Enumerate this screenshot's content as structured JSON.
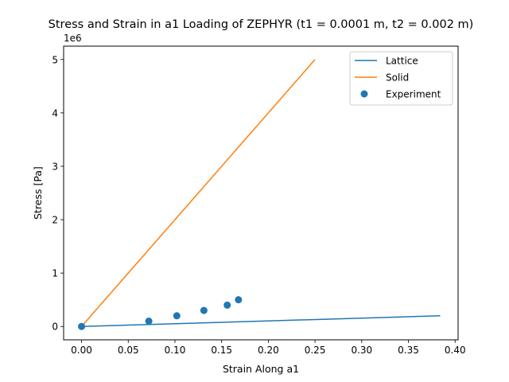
{
  "chart_data": {
    "type": "line",
    "title": "Stress and Strain in a1 Loading of ZEPHYR (t1 = 0.0001 m, t2 = 0.002 m)",
    "xlabel": "Strain Along a1",
    "ylabel": "Stress [Pa]",
    "y_offset_label": "1e6",
    "xlim": [
      -0.0192,
      0.4032
    ],
    "ylim": [
      -250000,
      5250000
    ],
    "x_ticks": [
      0.0,
      0.05,
      0.1,
      0.15,
      0.2,
      0.25,
      0.3,
      0.35,
      0.4
    ],
    "x_tick_labels": [
      "0.00",
      "0.05",
      "0.10",
      "0.15",
      "0.20",
      "0.25",
      "0.30",
      "0.35",
      "0.40"
    ],
    "y_ticks": [
      0,
      1000000,
      2000000,
      3000000,
      4000000,
      5000000
    ],
    "y_tick_labels": [
      "0",
      "1",
      "2",
      "3",
      "4",
      "5"
    ],
    "grid": false,
    "legend_position": "top-right",
    "series": [
      {
        "name": "Lattice",
        "kind": "line",
        "color": "#1f77b4",
        "x": [
          0.0,
          0.384
        ],
        "y": [
          0,
          200000
        ]
      },
      {
        "name": "Solid",
        "kind": "line",
        "color": "#ff7f0e",
        "x": [
          0.0,
          0.25
        ],
        "y": [
          0,
          5000000
        ]
      },
      {
        "name": "Experiment",
        "kind": "scatter",
        "color": "#1f77b4",
        "x": [
          0.0,
          0.072,
          0.102,
          0.131,
          0.156,
          0.168
        ],
        "y": [
          0,
          100000,
          200000,
          300000,
          400000,
          500000
        ]
      }
    ]
  }
}
